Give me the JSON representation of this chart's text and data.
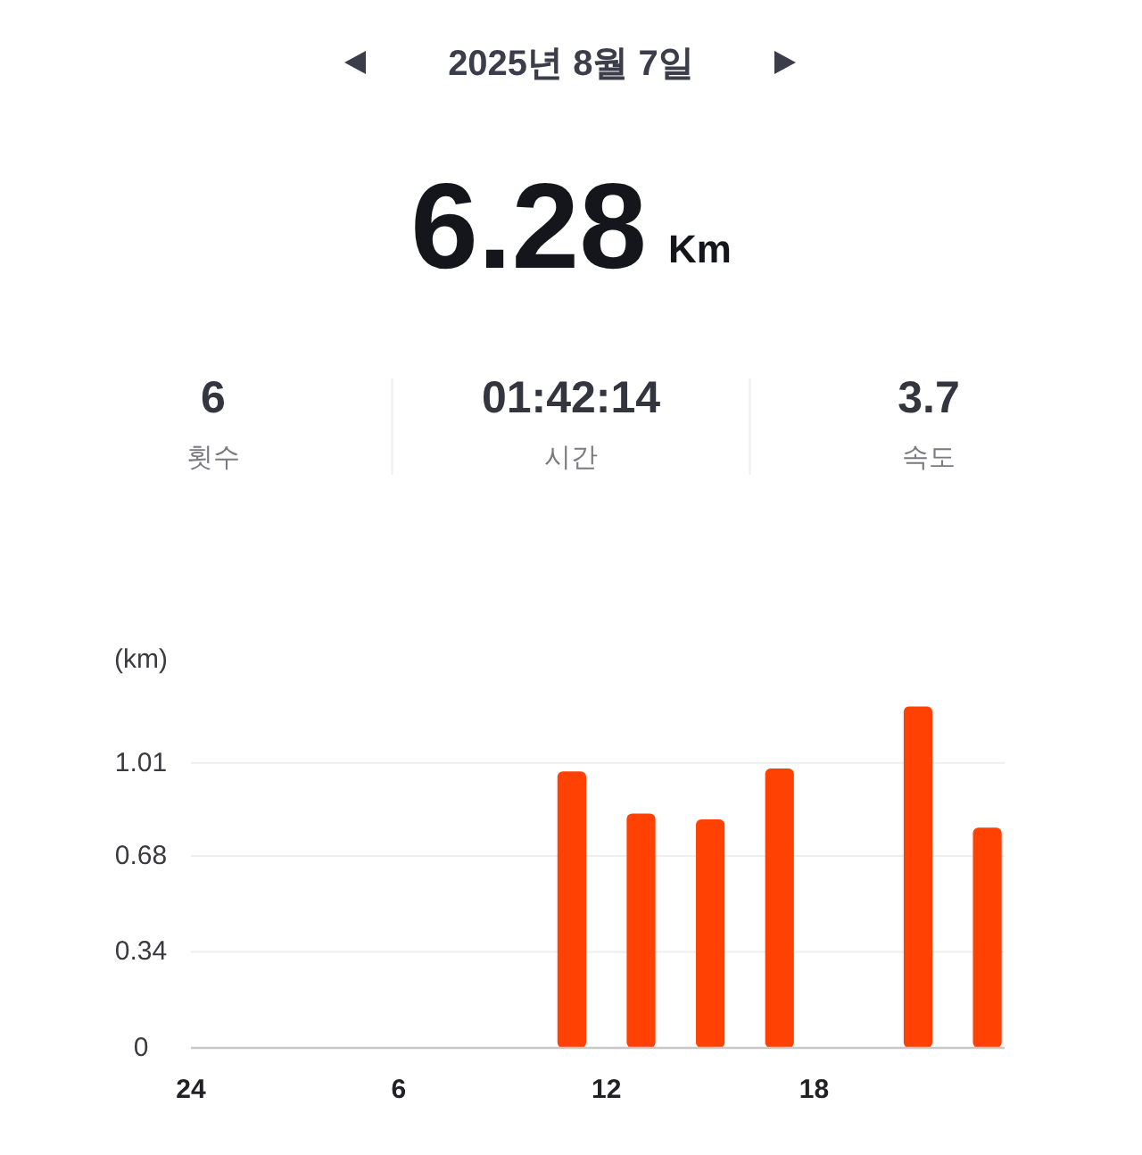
{
  "chart_data": {
    "type": "bar",
    "title": "2025년 8월 7일",
    "annotations": [
      "6.28",
      "Km",
      "6",
      "횟수",
      "01:42:14",
      "시간",
      "3.7",
      "속도"
    ],
    "ylabel": "(km)",
    "categories": [
      "24",
      null,
      null,
      null,
      null,
      null,
      "6",
      null,
      null,
      null,
      null,
      null,
      "12",
      null,
      null,
      null,
      null,
      null,
      "18",
      null,
      null,
      null,
      null,
      null
    ],
    "values": [
      null,
      null,
      null,
      null,
      null,
      null,
      null,
      null,
      null,
      null,
      null,
      0.98,
      null,
      0.83,
      null,
      0.81,
      null,
      0.99,
      null,
      null,
      null,
      1.21,
      null,
      0.78
    ],
    "color": "#ff4103",
    "ylim": [
      0,
      1.21
    ],
    "yticks": [
      0,
      0.34,
      0.68,
      1.01
    ],
    "grid": "y"
  }
}
